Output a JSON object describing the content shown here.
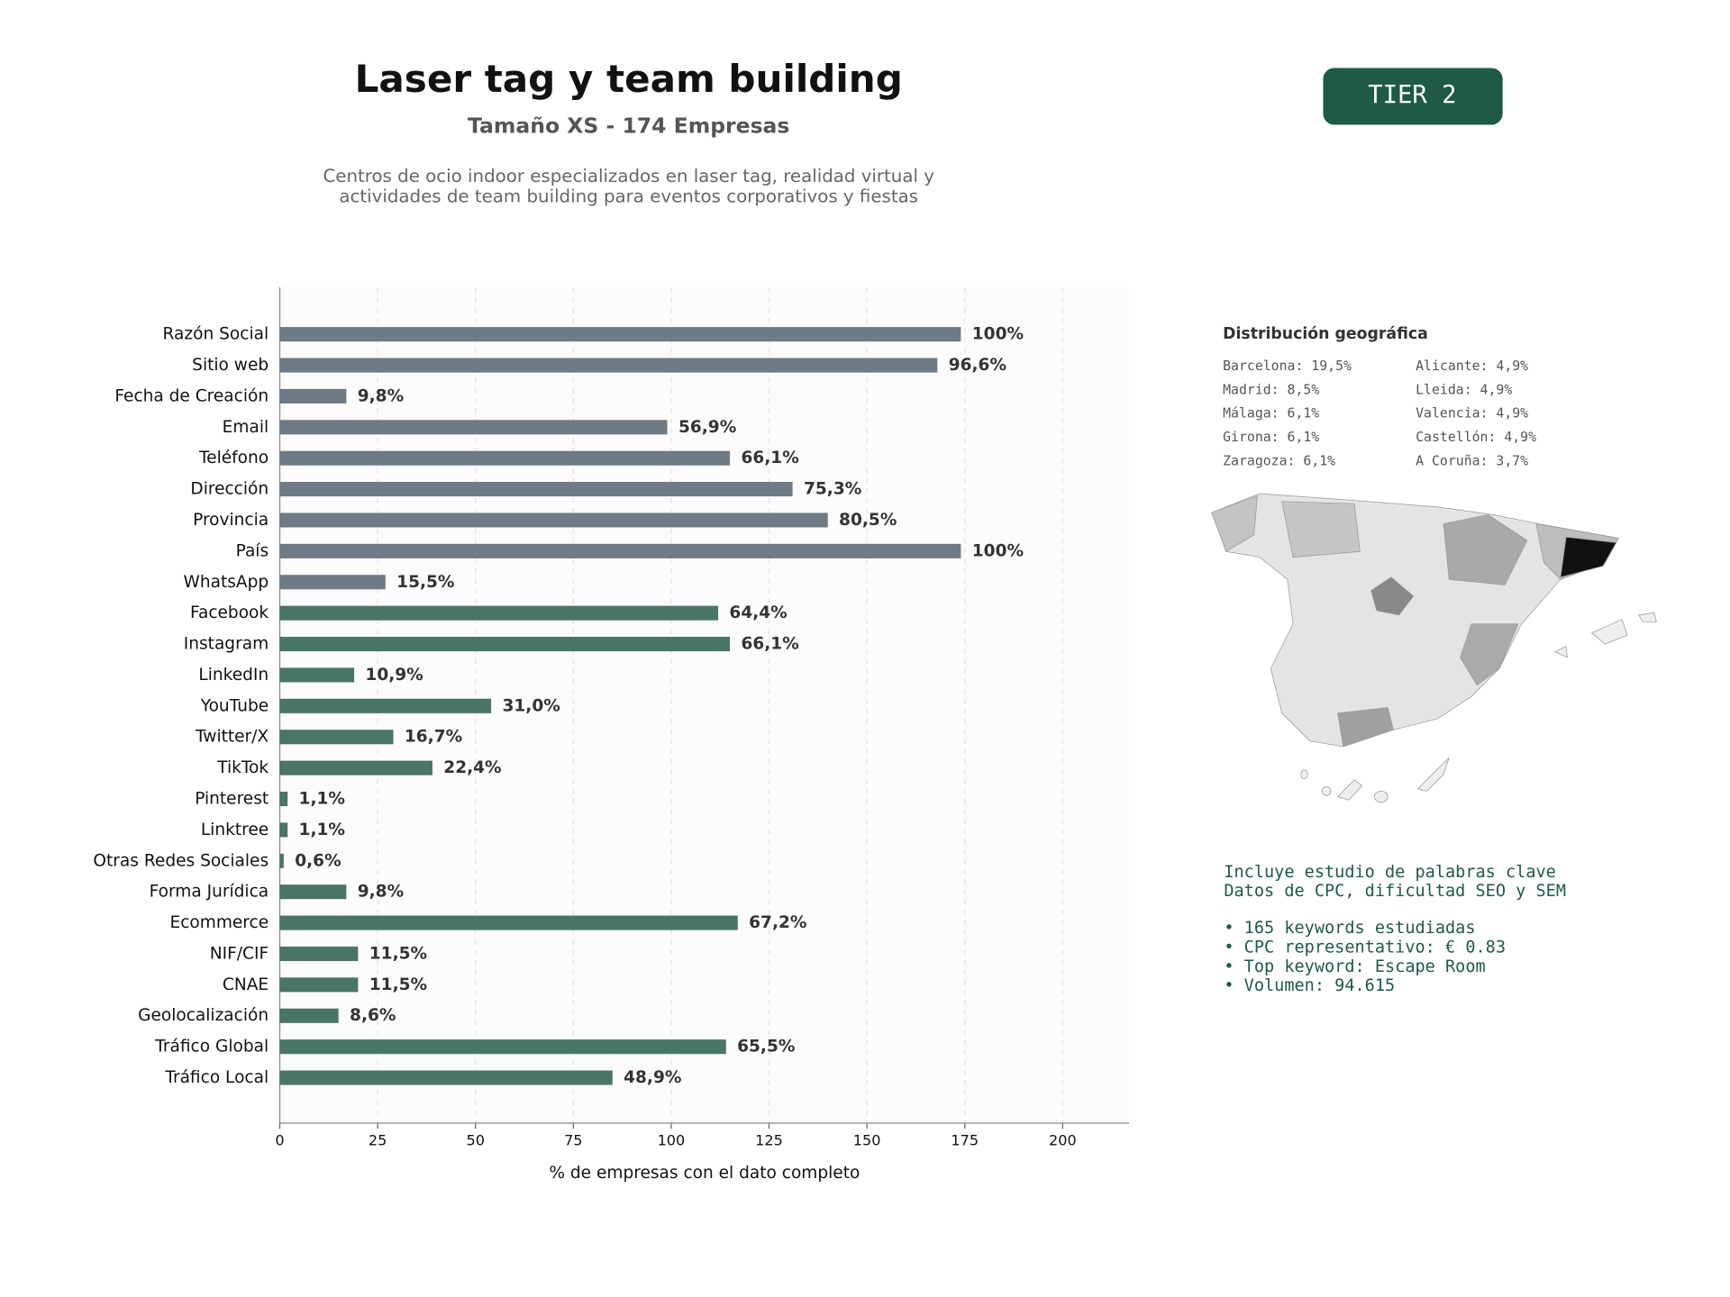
{
  "header": {
    "title": "Laser tag y team building",
    "subtitle": "Tamaño XS - 174 Empresas",
    "description": [
      "Centros de ocio indoor especializados en laser tag, realidad virtual y",
      "actividades de team building para eventos corporativos y fiestas"
    ],
    "badge": "TIER 2"
  },
  "chart_data": {
    "type": "bar",
    "orientation": "horizontal",
    "categories": [
      "Razón Social",
      "Sitio web",
      "Fecha de Creación",
      "Email",
      "Teléfono",
      "Dirección",
      "Provincia",
      "País",
      "WhatsApp",
      "Facebook",
      "Instagram",
      "LinkedIn",
      "YouTube",
      "Twitter/X",
      "TikTok",
      "Pinterest",
      "Linktree",
      "Otras Redes Sociales",
      "Forma Jurídica",
      "Ecommerce",
      "NIF/CIF",
      "CNAE",
      "Geolocalización",
      "Tráfico Global",
      "Tráfico Local"
    ],
    "values": [
      174,
      168,
      17,
      99,
      115,
      131,
      140,
      174,
      27,
      112,
      115,
      19,
      54,
      29,
      39,
      2,
      2,
      1,
      17,
      117,
      20,
      20,
      15,
      114,
      85
    ],
    "value_labels": [
      "100%",
      "96,6%",
      "9,8%",
      "56,9%",
      "66,1%",
      "75,3%",
      "80,5%",
      "100%",
      "15,5%",
      "64,4%",
      "66,1%",
      "10,9%",
      "31,0%",
      "16,7%",
      "22,4%",
      "1,1%",
      "1,1%",
      "0,6%",
      "9,8%",
      "67,2%",
      "11,5%",
      "11,5%",
      "8,6%",
      "65,5%",
      "48,9%"
    ],
    "colors": [
      "#6e7a85",
      "#6e7a85",
      "#6e7a85",
      "#6e7a85",
      "#6e7a85",
      "#6e7a85",
      "#6e7a85",
      "#6e7a85",
      "#6e7a85",
      "#497564",
      "#497564",
      "#497564",
      "#497564",
      "#497564",
      "#497564",
      "#497564",
      "#497564",
      "#497564",
      "#497564",
      "#497564",
      "#497564",
      "#497564",
      "#497564",
      "#497564",
      "#497564"
    ],
    "xlabel": "% de empresas con el dato completo",
    "xlim": [
      0,
      217
    ],
    "xticks": [
      0,
      25,
      50,
      75,
      100,
      125,
      150,
      175,
      200
    ],
    "grid": true
  },
  "geo": {
    "title": "Distribución geográfica",
    "items": [
      "Barcelona: 19,5%",
      "Madrid: 8,5%",
      "Málaga: 6,1%",
      "Girona: 6,1%",
      "Zaragoza: 6,1%",
      "Alicante: 4,9%",
      "Lleida: 4,9%",
      "Valencia: 4,9%",
      "Castellón: 4,9%",
      "A Coruña: 3,7%"
    ]
  },
  "keywords": {
    "lines": [
      "Incluye estudio de palabras clave",
      "Datos de CPC, dificultad SEO y SEM"
    ],
    "bullets": [
      "• 165 keywords estudiadas",
      "• CPC representativo: € 0.83",
      "• Top keyword: Escape Room",
      "• Volumen: 94.615"
    ]
  }
}
